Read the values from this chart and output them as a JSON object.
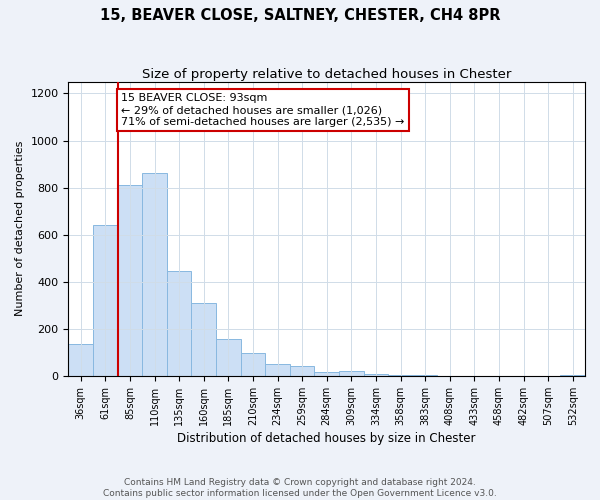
{
  "title": "15, BEAVER CLOSE, SALTNEY, CHESTER, CH4 8PR",
  "subtitle": "Size of property relative to detached houses in Chester",
  "xlabel": "Distribution of detached houses by size in Chester",
  "ylabel": "Number of detached properties",
  "bar_labels": [
    "36sqm",
    "61sqm",
    "85sqm",
    "110sqm",
    "135sqm",
    "160sqm",
    "185sqm",
    "210sqm",
    "234sqm",
    "259sqm",
    "284sqm",
    "309sqm",
    "334sqm",
    "358sqm",
    "383sqm",
    "408sqm",
    "433sqm",
    "458sqm",
    "482sqm",
    "507sqm",
    "532sqm"
  ],
  "bar_values": [
    135,
    640,
    810,
    860,
    445,
    310,
    158,
    96,
    52,
    42,
    18,
    22,
    10,
    5,
    2,
    1,
    0,
    0,
    0,
    0,
    3
  ],
  "bar_color": "#ccdff5",
  "bar_edge_color": "#88b8e0",
  "vline_x_index": 2,
  "vline_color": "#cc0000",
  "annotation_line1": "15 BEAVER CLOSE: 93sqm",
  "annotation_line2": "← 29% of detached houses are smaller (1,026)",
  "annotation_line3": "71% of semi-detached houses are larger (2,535) →",
  "annotation_box_color": "#ffffff",
  "annotation_box_edge": "#cc0000",
  "ylim": [
    0,
    1250
  ],
  "yticks": [
    0,
    200,
    400,
    600,
    800,
    1000,
    1200
  ],
  "footer_line1": "Contains HM Land Registry data © Crown copyright and database right 2024.",
  "footer_line2": "Contains public sector information licensed under the Open Government Licence v3.0.",
  "background_color": "#eef2f9",
  "plot_bg_color": "#ffffff",
  "grid_color": "#d0dce8"
}
